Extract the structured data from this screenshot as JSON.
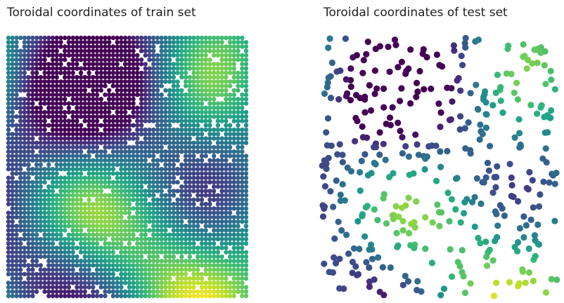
{
  "chart_data": [
    {
      "type": "scatter",
      "title": "Toroidal coordinates of train set",
      "xlabel": "",
      "ylabel": "",
      "axis_visible": false,
      "grid": false,
      "colormap": "viridis",
      "layout": "dense grid with sparse holes",
      "grid_points": [
        60,
        60
      ],
      "xlim": [
        0,
        1
      ],
      "ylim": [
        0,
        1
      ],
      "color_field": "sin(2*pi*x) * cos(2*pi*y) style toroidal pattern: low (purple) near upper-left-center, high (yellow) near upper-right, center-left band and lower-right"
    },
    {
      "type": "scatter",
      "title": "Toroidal coordinates of test set",
      "xlabel": "",
      "ylabel": "",
      "axis_visible": false,
      "grid": false,
      "colormap": "viridis",
      "n_points": 420,
      "xlim": [
        0,
        1
      ],
      "ylim": [
        0,
        1
      ]
    }
  ]
}
